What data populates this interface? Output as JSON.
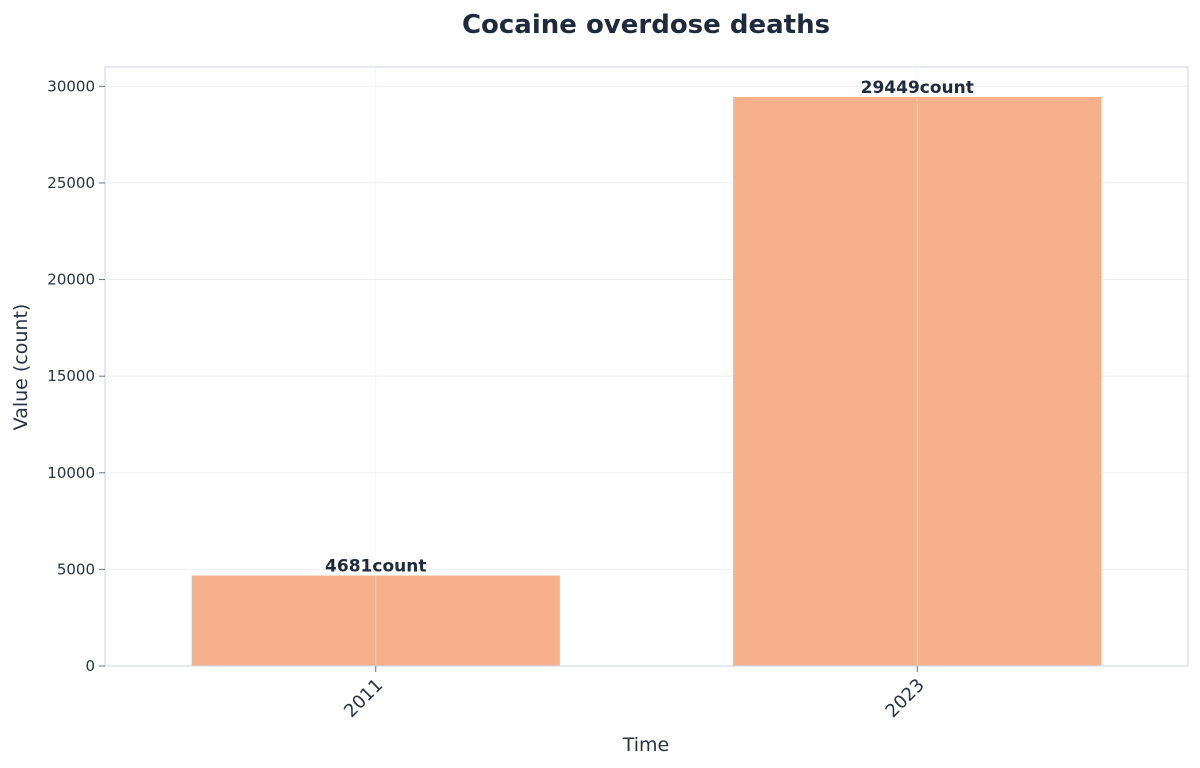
{
  "colors": {
    "bar": "#f6b08b",
    "text": "#1f2a3c"
  },
  "chart_data": {
    "type": "bar",
    "title": "Cocaine overdose deaths",
    "xlabel": "Time",
    "ylabel": "Value (count)",
    "categories": [
      "2011",
      "2023"
    ],
    "values": [
      4681,
      29449
    ],
    "data_labels": [
      "4681count",
      "29449count"
    ],
    "ylim": [
      0,
      31000
    ],
    "yticks": [
      0,
      5000,
      10000,
      15000,
      20000,
      25000,
      30000
    ],
    "grid": true,
    "legend": "none"
  }
}
